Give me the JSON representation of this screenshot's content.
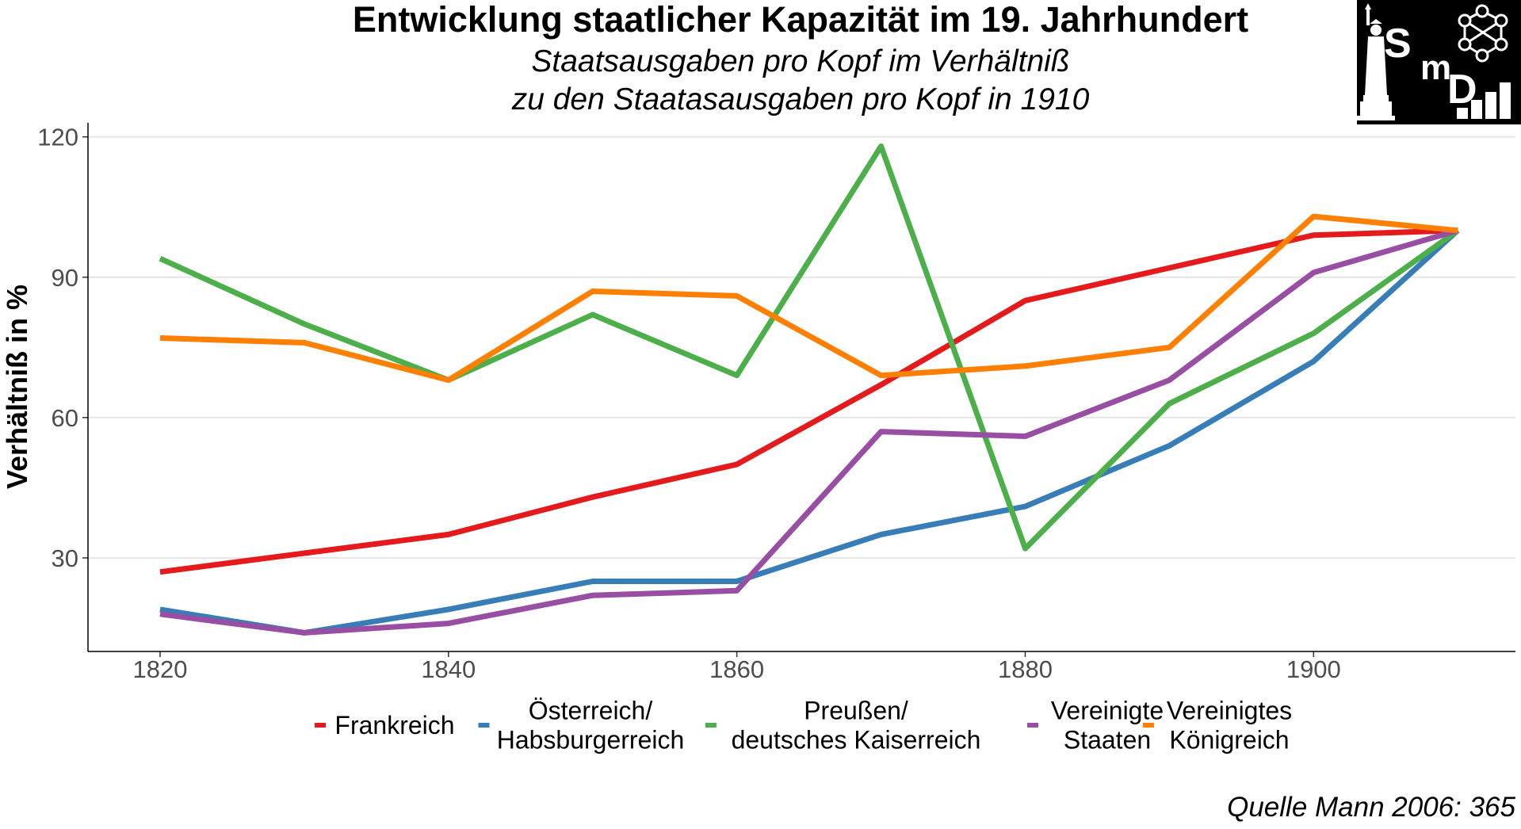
{
  "title": "Entwicklung staatlicher Kapazität im 19. Jahrhundert",
  "subtitle_lines": [
    "Staatsausgaben pro Kopf im Verhältniß",
    "zu den Staatasausgaben pro Kopf in 1910"
  ],
  "source": "Quelle Mann 2006: 365",
  "logo": {
    "letters": [
      "S",
      "m",
      "D"
    ],
    "icons": [
      "statue-of-liberty-icon",
      "network-people-icon",
      "bar-chart-icon"
    ]
  },
  "chart_data": {
    "type": "line",
    "title": "Entwicklung staatlicher Kapazität im 19. Jahrhundert",
    "xlabel": "",
    "ylabel": "Verhältniß in %",
    "xlim": [
      1815,
      1914
    ],
    "ylim": [
      10,
      123
    ],
    "x_ticks": [
      1820,
      1840,
      1860,
      1880,
      1900
    ],
    "y_ticks": [
      30,
      60,
      90,
      120
    ],
    "grid": true,
    "legend_position": "bottom",
    "x": [
      1820,
      1830,
      1840,
      1850,
      1860,
      1870,
      1880,
      1890,
      1900,
      1910
    ],
    "series": [
      {
        "name": "Frankreich",
        "color": "#e41a1c",
        "legend_lines": [
          "Frankreich"
        ],
        "values": [
          27,
          31,
          35,
          43,
          50,
          67,
          85,
          92,
          99,
          100
        ]
      },
      {
        "name": "Österreich/ Habsburgerreich",
        "color": "#377eb8",
        "legend_lines": [
          "Österreich/",
          "Habsburgerreich"
        ],
        "values": [
          19,
          14,
          19,
          25,
          25,
          35,
          41,
          54,
          72,
          100
        ]
      },
      {
        "name": "Preußen/ deutsches Kaiserreich",
        "color": "#4daf4a",
        "legend_lines": [
          "Preußen/",
          "deutsches Kaiserreich"
        ],
        "values": [
          94,
          80,
          68,
          82,
          69,
          118,
          32,
          63,
          78,
          100
        ]
      },
      {
        "name": "Vereinigte Staaten",
        "color": "#984ea3",
        "legend_lines": [
          "Vereinigte",
          "Staaten"
        ],
        "values": [
          18,
          14,
          16,
          22,
          23,
          57,
          56,
          68,
          91,
          100
        ]
      },
      {
        "name": "Vereinigtes Königreich",
        "color": "#ff7f00",
        "legend_lines": [
          "Vereinigtes",
          "Königreich"
        ],
        "values": [
          77,
          76,
          68,
          87,
          86,
          69,
          71,
          75,
          103,
          100
        ]
      }
    ]
  }
}
